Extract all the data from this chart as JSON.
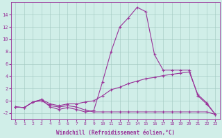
{
  "xlabel": "Windchill (Refroidissement éolien,°C)",
  "background_color": "#d0eee8",
  "line_color": "#993399",
  "x_values": [
    0,
    1,
    2,
    3,
    4,
    5,
    6,
    7,
    8,
    9,
    10,
    11,
    12,
    13,
    14,
    15,
    16,
    17,
    18,
    19,
    20,
    21,
    22,
    23
  ],
  "line1": [
    -1.0,
    -1.1,
    -0.2,
    0.2,
    -1.0,
    -1.4,
    -1.1,
    -1.4,
    -1.8,
    -1.6,
    3.0,
    8.0,
    12.0,
    13.5,
    15.2,
    14.5,
    7.5,
    5.0,
    5.0,
    5.0,
    5.0,
    0.8,
    -0.5,
    -2.2
  ],
  "line2": [
    -1.0,
    -1.1,
    -0.2,
    0.2,
    -0.5,
    -0.8,
    -0.5,
    -0.5,
    -0.2,
    0.0,
    0.8,
    1.8,
    2.2,
    2.8,
    3.2,
    3.6,
    3.8,
    4.1,
    4.3,
    4.5,
    4.7,
    1.0,
    -0.3,
    -2.2
  ],
  "line3": [
    -1.0,
    -1.1,
    -0.2,
    0.0,
    -0.8,
    -1.0,
    -0.8,
    -1.0,
    -1.5,
    -1.8,
    -1.8,
    -1.8,
    -1.8,
    -1.8,
    -1.8,
    -1.8,
    -1.8,
    -1.8,
    -1.8,
    -1.8,
    -1.8,
    -1.8,
    -1.8,
    -2.2
  ],
  "ylim": [
    -3,
    16
  ],
  "xlim": [
    -0.5,
    23.5
  ],
  "yticks": [
    -2,
    0,
    2,
    4,
    6,
    8,
    10,
    12,
    14
  ],
  "xticks": [
    0,
    1,
    2,
    3,
    4,
    5,
    6,
    7,
    8,
    9,
    10,
    11,
    12,
    13,
    14,
    15,
    16,
    17,
    18,
    19,
    20,
    21,
    22,
    23
  ],
  "tick_fontsize": 4.5,
  "xlabel_fontsize": 5.5,
  "marker": "+",
  "markersize": 3,
  "linewidth": 0.8
}
